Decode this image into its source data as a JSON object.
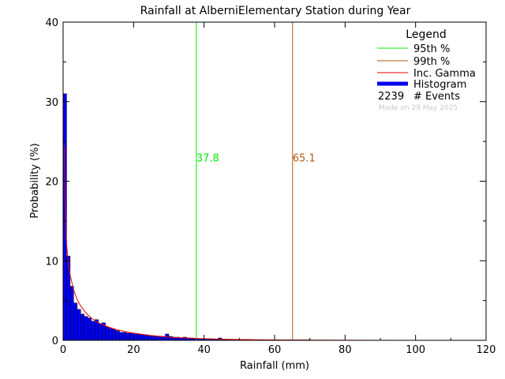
{
  "chart_data": {
    "type": "bar",
    "title": "Rainfall at AlberniElementary Station during Year",
    "xlabel": "Rainfall (mm)",
    "ylabel": "Probability (%)",
    "xlim": [
      0,
      120
    ],
    "ylim": [
      0,
      40
    ],
    "x_ticks": [
      "0",
      "20",
      "40",
      "60",
      "80",
      "100",
      "120"
    ],
    "y_ticks": [
      "0",
      "10",
      "20",
      "30",
      "40"
    ],
    "grid": false,
    "legend_position": "top-right",
    "legend": {
      "title": "Legend",
      "items": [
        {
          "label": "95th %",
          "kind": "line",
          "color": "#00ee00"
        },
        {
          "label": "99th %",
          "kind": "line",
          "color": "#b05a10"
        },
        {
          "label": "Inc. Gamma",
          "kind": "line",
          "color": "#ee0000"
        },
        {
          "label": "Histogram",
          "kind": "thick",
          "color": "#0000ee"
        }
      ],
      "events_count": "2239",
      "events_label": "# Events",
      "made_on": "Made on 29 May 2025"
    },
    "percentiles": [
      {
        "name": "95th %",
        "value": 37.8,
        "label": "37.8",
        "color": "#00ee00"
      },
      {
        "name": "99th %",
        "value": 65.1,
        "label": "65.1",
        "color": "#b05a10"
      }
    ],
    "histogram": {
      "bin_width": 1,
      "color": "#0000ee",
      "values": [
        31.0,
        10.6,
        6.8,
        4.7,
        3.9,
        3.3,
        3.0,
        2.8,
        2.4,
        2.6,
        2.1,
        2.2,
        1.7,
        1.5,
        1.4,
        1.2,
        1.0,
        1.0,
        0.9,
        0.9,
        0.8,
        0.8,
        0.7,
        0.7,
        0.6,
        0.6,
        0.5,
        0.5,
        0.5,
        0.8,
        0.5,
        0.4,
        0.4,
        0.3,
        0.4,
        0.3,
        0.3,
        0.2,
        0.2,
        0.2,
        0.2,
        0.2,
        0.2,
        0.1,
        0.3,
        0.1,
        0.1,
        0.1,
        0.1,
        0.1,
        0.1,
        0.1,
        0.1,
        0.05,
        0.05,
        0.05,
        0.05,
        0.05,
        0.05,
        0.05,
        0.05,
        0.05,
        0.05,
        0.05,
        0.05,
        0.05,
        0.05,
        0.05,
        0.05,
        0.05
      ]
    },
    "gamma_curve": {
      "color": "#ee0000",
      "x": [
        0.3,
        0.5,
        0.75,
        1,
        1.5,
        2,
        3,
        4,
        5,
        6,
        7,
        8,
        10,
        12,
        15,
        18,
        20,
        25,
        30,
        35,
        40,
        45,
        50,
        60,
        70,
        80,
        100,
        120
      ],
      "y": [
        24.5,
        18.0,
        14.0,
        12.0,
        9.5,
        8.2,
        6.3,
        5.1,
        4.3,
        3.7,
        3.2,
        2.8,
        2.2,
        1.8,
        1.35,
        1.05,
        0.9,
        0.6,
        0.4,
        0.28,
        0.2,
        0.14,
        0.1,
        0.05,
        0.025,
        0.012,
        0.003,
        0.0
      ]
    }
  }
}
